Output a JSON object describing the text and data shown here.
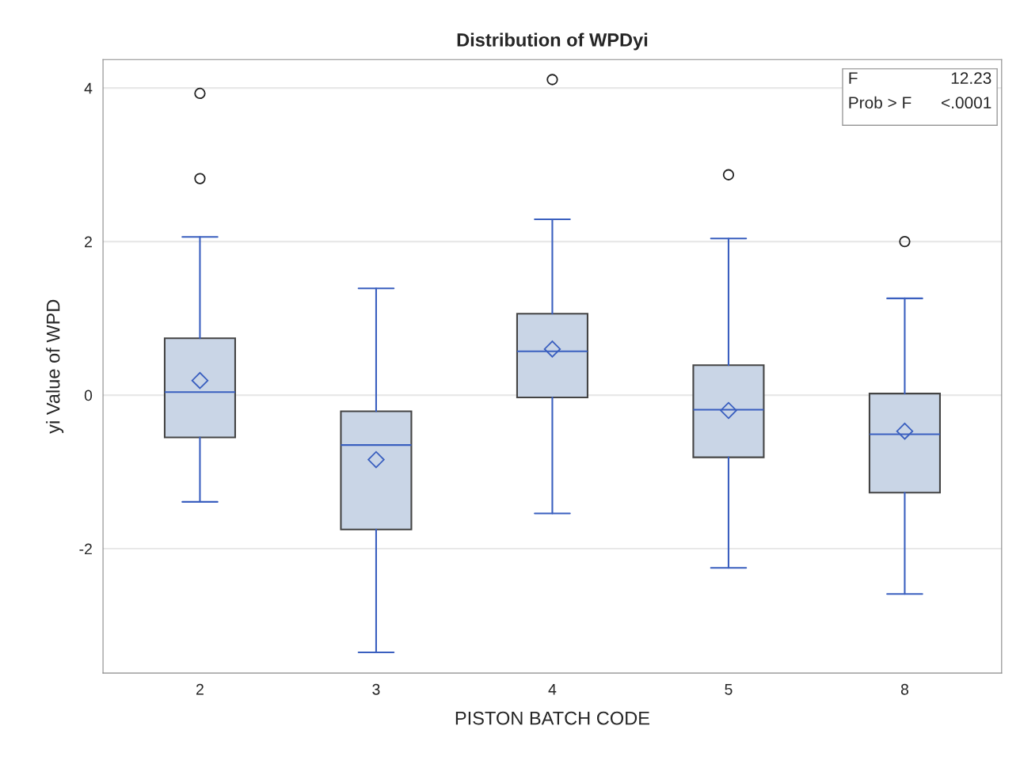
{
  "chart_data": {
    "type": "box",
    "title": "Distribution of WPDyi",
    "xlabel": "PISTON BATCH CODE",
    "ylabel": "yi Value of WPD",
    "categories": [
      "2",
      "3",
      "4",
      "5",
      "8"
    ],
    "boxes": [
      {
        "low": -1.39,
        "q1": -0.55,
        "median": 0.04,
        "q3": 0.74,
        "high": 2.06,
        "mean": 0.19,
        "outliers": [
          3.93,
          2.82
        ]
      },
      {
        "low": -3.35,
        "q1": -1.75,
        "median": -0.65,
        "q3": -0.21,
        "high": 1.39,
        "mean": -0.84
      },
      {
        "low": -1.54,
        "q1": -0.03,
        "median": 0.57,
        "q3": 1.06,
        "high": 2.29,
        "mean": 0.6,
        "outliers": [
          4.11
        ]
      },
      {
        "low": -2.25,
        "q1": -0.81,
        "median": -0.19,
        "q3": 0.39,
        "high": 2.04,
        "mean": -0.2,
        "outliers": [
          2.87
        ]
      },
      {
        "low": -2.59,
        "q1": -1.27,
        "median": -0.51,
        "q3": 0.02,
        "high": 1.26,
        "mean": -0.47,
        "outliers": [
          2.0
        ]
      }
    ],
    "color": "#c9d5e6",
    "ylim": [
      -3.62,
      4.37
    ],
    "yticks": [
      {
        "value": -2,
        "label": "-2"
      },
      0,
      2,
      4
    ],
    "grid": "y",
    "legend": false,
    "annotations": [
      "F",
      "12.23",
      "Prob > F",
      "<.0001"
    ]
  }
}
